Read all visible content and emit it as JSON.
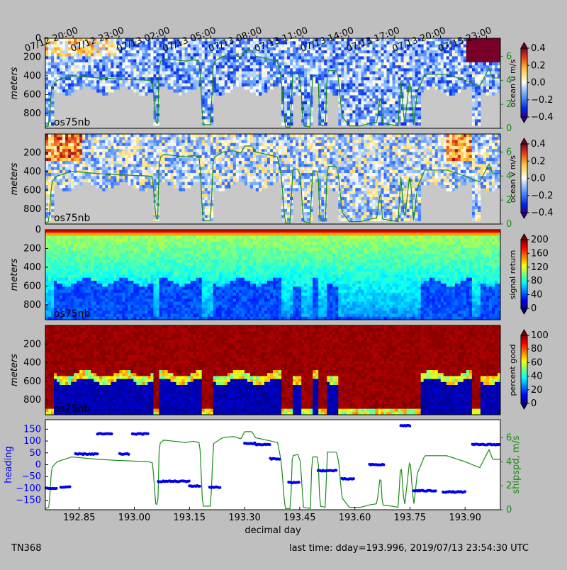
{
  "footer": {
    "cruise": "TN368",
    "last_time": "last time: dday=193.996,  2019/07/13 23:54:30 UTC"
  },
  "colors": {
    "figure_bg": "#bfbfbf",
    "no_data": "#c8c8c8",
    "shipspd": "#1a8a1a",
    "heading": "#0000ee"
  },
  "chart_data": [
    {
      "type": "heatmap",
      "id": "u",
      "instrument_label": "os75nb",
      "ylabel": "meters",
      "yticks": [
        0,
        200,
        400,
        600,
        800
      ],
      "ylim": [
        960,
        0
      ],
      "colorbar": {
        "label": "ocean u m/s",
        "ticks": [
          "0.4",
          "0.2",
          "0.0",
          "−0.2",
          "−0.4"
        ],
        "range": [
          -0.4,
          0.4
        ],
        "colormap": "blue-white-red"
      },
      "right_axis": {
        "ticks": [
          "6",
          "4",
          "2",
          "0"
        ],
        "range": [
          0,
          7.5
        ],
        "color": "#1a8a1a"
      },
      "top_axis_labels": [
        "07/12 20:00",
        "07/12 23:00",
        "07/13 02:00",
        "07/13 05:00",
        "07/13 08:00",
        "07/13 11:00",
        "07/13 14:00",
        "07/13 17:00",
        "07/13 20:00",
        "07/13 23:00"
      ],
      "top_axis_dday": [
        192.8333,
        192.9583,
        193.0833,
        193.2083,
        193.3333,
        193.4583,
        193.5833,
        193.7083,
        193.8333,
        193.9583
      ]
    },
    {
      "type": "heatmap",
      "id": "v",
      "instrument_label": "os75nb",
      "ylabel": "meters",
      "yticks": [
        200,
        400,
        600,
        800
      ],
      "ylim": [
        960,
        0
      ],
      "colorbar": {
        "label": "ocean v m/s",
        "ticks": [
          "0.4",
          "0.2",
          "0.0",
          "−0.2",
          "−0.4"
        ],
        "range": [
          -0.4,
          0.4
        ],
        "colormap": "blue-white-red"
      },
      "right_axis": {
        "ticks": [
          "6",
          "4",
          "2",
          "0"
        ],
        "range": [
          0,
          7.5
        ],
        "color": "#1a8a1a"
      }
    },
    {
      "type": "heatmap",
      "id": "amp",
      "instrument_label": "os75nb",
      "ylabel": "meters",
      "yticks": [
        0,
        200,
        400,
        600,
        800
      ],
      "ylim": [
        960,
        0
      ],
      "colorbar": {
        "label": "signal return",
        "ticks": [
          "200",
          "160",
          "120",
          "80",
          "40",
          "0"
        ],
        "range": [
          0,
          200
        ],
        "colormap": "jet"
      }
    },
    {
      "type": "heatmap",
      "id": "pg",
      "instrument_label": "os75nb",
      "ylabel": "meters",
      "yticks": [
        200,
        400,
        600,
        800
      ],
      "ylim": [
        960,
        0
      ],
      "colorbar": {
        "label": "percent good",
        "ticks": [
          "100",
          "80",
          "60",
          "40",
          "20",
          "0"
        ],
        "range": [
          0,
          100
        ],
        "colormap": "jet"
      }
    },
    {
      "type": "scatter",
      "id": "heading",
      "xlabel": "decimal day",
      "xticks": [
        192.85,
        193.0,
        193.15,
        193.3,
        193.45,
        193.6,
        193.75,
        193.9
      ],
      "xtick_labels": [
        "192.85",
        "193.00",
        "193.15",
        "193.30",
        "193.45",
        "193.60",
        "193.75",
        "193.90"
      ],
      "xlim": [
        192.758,
        193.996
      ],
      "ylabel_left": "heading",
      "left_ticks": [
        150,
        100,
        50,
        0,
        -50,
        -100,
        -150
      ],
      "left_tick_labels": [
        "150",
        "100",
        "50",
        "0",
        "−50",
        "−100",
        "−150"
      ],
      "left_range": [
        -190,
        190
      ],
      "ylabel_right": "shipspd, m/s",
      "right_ticks": [
        "6",
        "4",
        "2",
        "0"
      ],
      "right_range": [
        0,
        7.5
      ],
      "heading_segments": [
        {
          "x0": 192.76,
          "x1": 192.79,
          "y": -100
        },
        {
          "x0": 192.8,
          "x1": 192.825,
          "y": -95
        },
        {
          "x0": 192.84,
          "x1": 192.9,
          "y": 45
        },
        {
          "x0": 192.9,
          "x1": 192.94,
          "y": 130
        },
        {
          "x0": 192.96,
          "x1": 192.985,
          "y": 45
        },
        {
          "x0": 192.995,
          "x1": 193.04,
          "y": 130
        },
        {
          "x0": 193.065,
          "x1": 193.15,
          "y": -70
        },
        {
          "x0": 193.15,
          "x1": 193.18,
          "y": -90
        },
        {
          "x0": 193.205,
          "x1": 193.235,
          "y": -95
        },
        {
          "x0": 193.3,
          "x1": 193.33,
          "y": 90
        },
        {
          "x0": 193.33,
          "x1": 193.37,
          "y": 85
        },
        {
          "x0": 193.37,
          "x1": 193.395,
          "y": 25
        },
        {
          "x0": 193.42,
          "x1": 193.45,
          "y": -75
        },
        {
          "x0": 193.5,
          "x1": 193.55,
          "y": -25
        },
        {
          "x0": 193.565,
          "x1": 193.6,
          "y": -60
        },
        {
          "x0": 193.64,
          "x1": 193.68,
          "y": 0
        },
        {
          "x0": 193.725,
          "x1": 193.75,
          "y": 165
        },
        {
          "x0": 193.76,
          "x1": 193.82,
          "y": -110
        },
        {
          "x0": 193.84,
          "x1": 193.9,
          "y": -115
        },
        {
          "x0": 193.92,
          "x1": 193.996,
          "y": 85
        }
      ],
      "shipspd": [
        [
          192.758,
          0.1
        ],
        [
          192.768,
          0.2
        ],
        [
          192.775,
          3.5
        ],
        [
          192.79,
          4.0
        ],
        [
          192.83,
          4.4
        ],
        [
          192.9,
          4.2
        ],
        [
          192.96,
          4.1
        ],
        [
          193.04,
          4.0
        ],
        [
          193.05,
          3.9
        ],
        [
          193.058,
          0.5
        ],
        [
          193.064,
          0.4
        ],
        [
          193.068,
          5.5
        ],
        [
          193.08,
          5.8
        ],
        [
          193.14,
          5.6
        ],
        [
          193.16,
          5.7
        ],
        [
          193.178,
          5.6
        ],
        [
          193.186,
          0.3
        ],
        [
          193.208,
          0.3
        ],
        [
          193.215,
          5.5
        ],
        [
          193.24,
          6.0
        ],
        [
          193.27,
          6.1
        ],
        [
          193.29,
          5.9
        ],
        [
          193.3,
          6.5
        ],
        [
          193.32,
          6.5
        ],
        [
          193.33,
          6.0
        ],
        [
          193.39,
          5.6
        ],
        [
          193.4,
          4.0
        ],
        [
          193.41,
          0.1
        ],
        [
          193.425,
          0.1
        ],
        [
          193.43,
          4.5
        ],
        [
          193.445,
          4.6
        ],
        [
          193.452,
          4.0
        ],
        [
          193.46,
          0.2
        ],
        [
          193.48,
          0.1
        ],
        [
          193.483,
          4.4
        ],
        [
          193.5,
          4.4
        ],
        [
          193.505,
          0.3
        ],
        [
          193.52,
          0.2
        ],
        [
          193.525,
          4.8
        ],
        [
          193.55,
          4.8
        ],
        [
          193.556,
          4.0
        ],
        [
          193.565,
          1.0
        ],
        [
          193.585,
          0.2
        ],
        [
          193.615,
          0.2
        ],
        [
          193.64,
          0.4
        ],
        [
          193.66,
          0.5
        ],
        [
          193.67,
          3.0
        ],
        [
          193.675,
          0.4
        ],
        [
          193.7,
          0.3
        ],
        [
          193.718,
          0.2
        ],
        [
          193.725,
          4.0
        ],
        [
          193.735,
          0.2
        ],
        [
          193.75,
          4.3
        ],
        [
          193.76,
          0.3
        ],
        [
          193.77,
          3.0
        ],
        [
          193.79,
          4.5
        ],
        [
          193.85,
          4.5
        ],
        [
          193.9,
          4.0
        ],
        [
          193.94,
          3.5
        ],
        [
          193.965,
          5.0
        ],
        [
          193.975,
          4.2
        ],
        [
          193.996,
          4.2
        ]
      ]
    }
  ]
}
